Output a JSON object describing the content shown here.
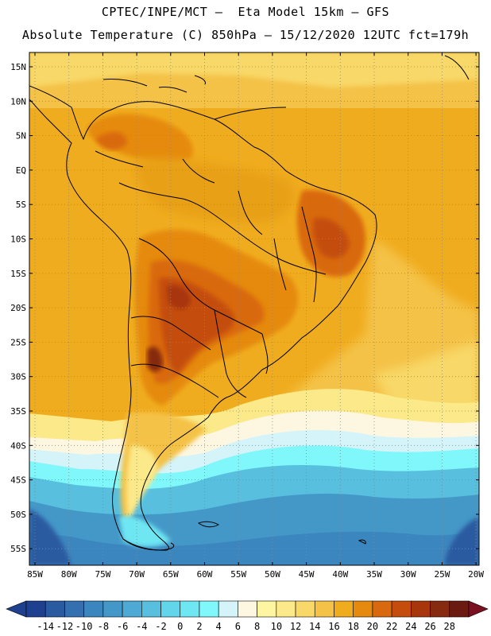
{
  "header": {
    "line1": "CPTEC/INPE/MCT –  Eta Model 15km – GFS",
    "line2": "Absolute Temperature (C) 850hPa – 15/12/2020 12UTC fct=179h"
  },
  "axes": {
    "lat_labels": [
      "15N",
      "10N",
      "5N",
      "EQ",
      "5S",
      "10S",
      "15S",
      "20S",
      "25S",
      "30S",
      "35S",
      "40S",
      "45S",
      "50S",
      "55S"
    ],
    "lon_labels": [
      "85W",
      "80W",
      "75W",
      "70W",
      "65W",
      "60W",
      "55W",
      "50W",
      "45W",
      "40W",
      "35W",
      "30W",
      "25W",
      "20W"
    ]
  },
  "colorbar": {
    "labels": [
      "-14",
      "-12",
      "-10",
      "-8",
      "-6",
      "-4",
      "-2",
      "0",
      "2",
      "4",
      "6",
      "8",
      "10",
      "12",
      "14",
      "16",
      "18",
      "20",
      "22",
      "24",
      "26",
      "28"
    ],
    "colors": [
      "#1f3f8f",
      "#2a5aa0",
      "#3470b0",
      "#3c86bf",
      "#4498c8",
      "#4eaad4",
      "#58bfdf",
      "#62d5eb",
      "#6ee7f3",
      "#7ff7fb",
      "#d4f4fa",
      "#fdf7e2",
      "#fdf5a0",
      "#fbe98a",
      "#f8d868",
      "#f4c247",
      "#f0ac1f",
      "#e58a0f",
      "#d9690e",
      "#c44d0d",
      "#a8360c",
      "#862a10",
      "#6b1a12"
    ]
  },
  "legend_value_range": {
    "min": -14,
    "max": 28,
    "step": 2,
    "units": "C"
  }
}
